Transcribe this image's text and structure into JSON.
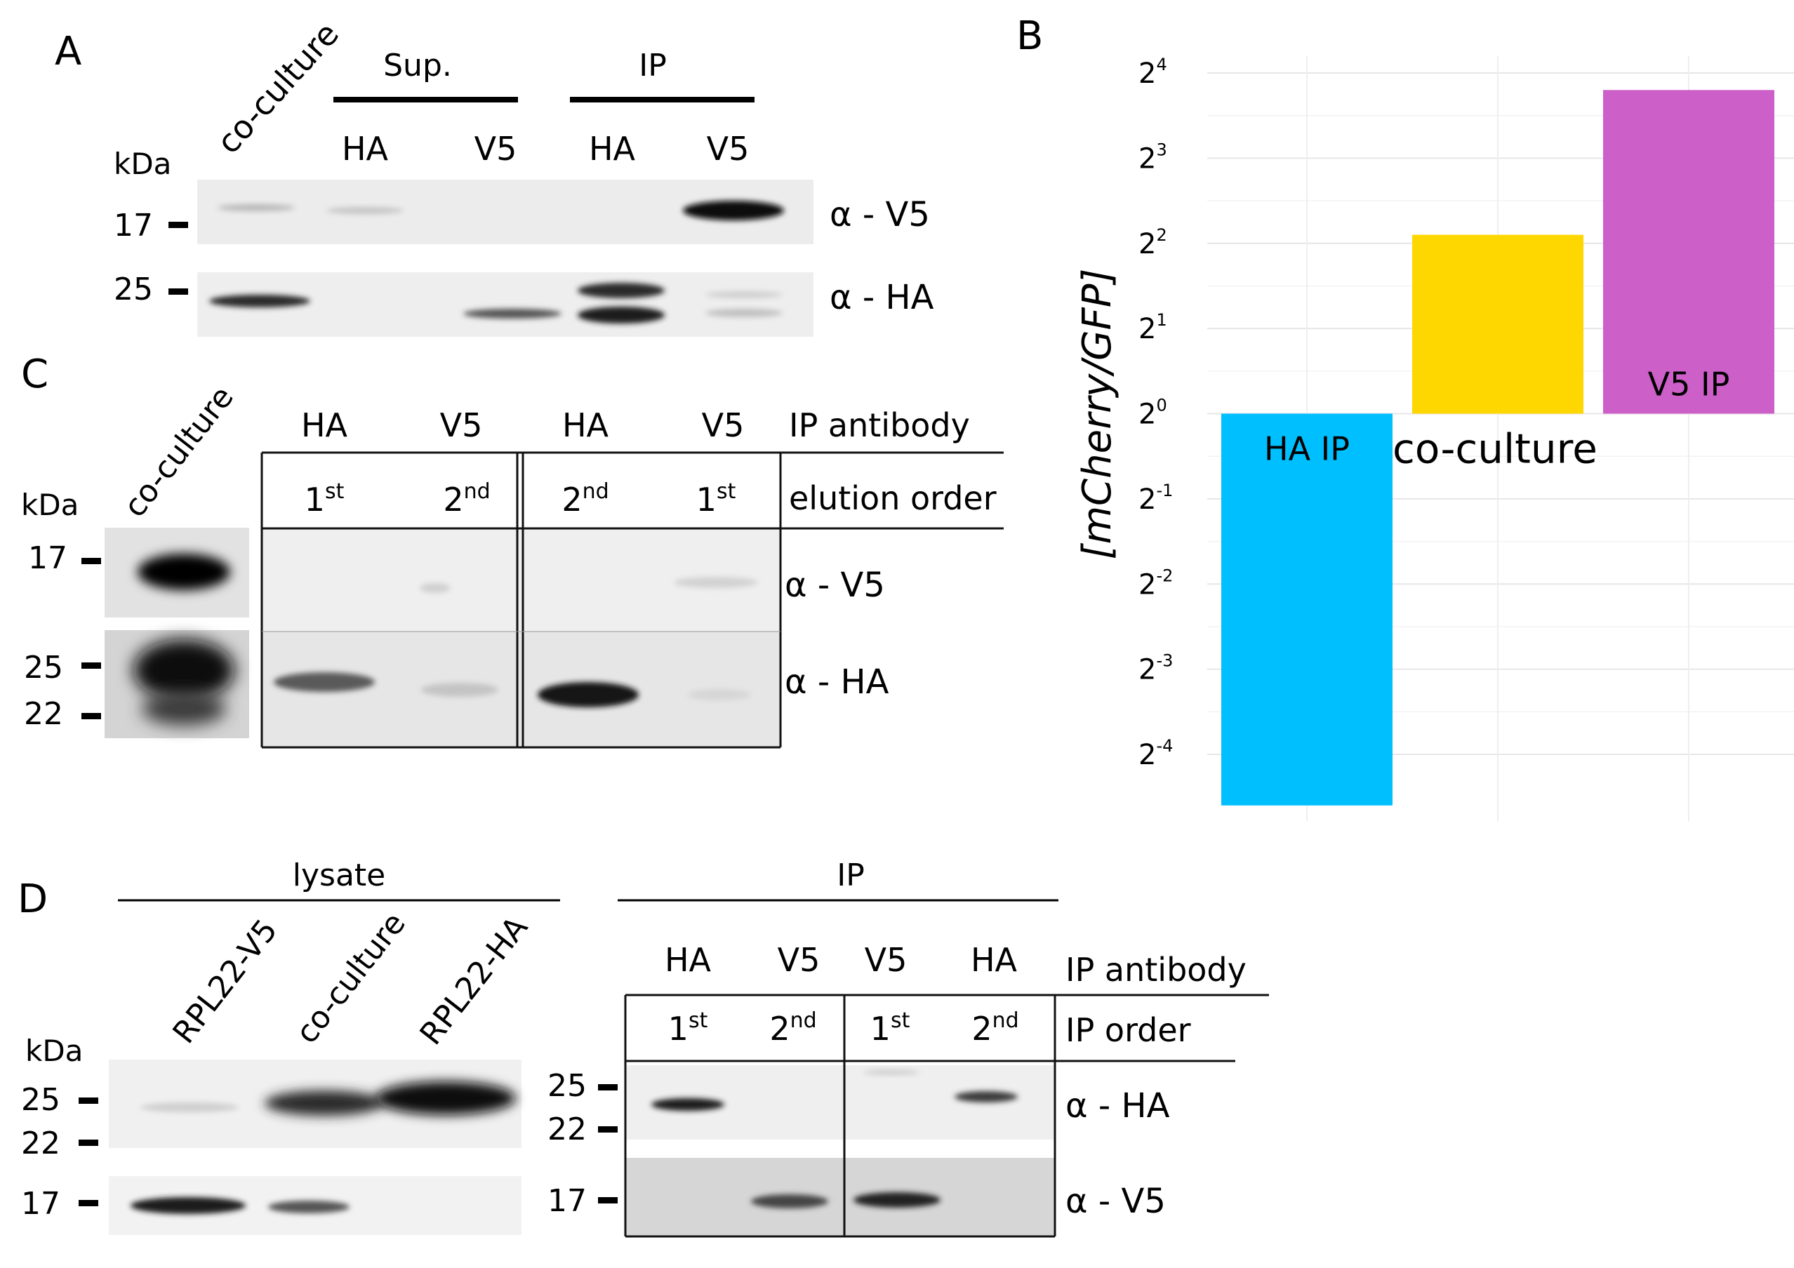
{
  "panels": {
    "A": "A",
    "B": "B",
    "C": "C",
    "D": "D"
  },
  "panel_a": {
    "lane_coculture": "co-culture",
    "group_sup": "Sup.",
    "group_ip": "IP",
    "lanes": [
      "HA",
      "V5",
      "HA",
      "V5"
    ],
    "kda": "kDa",
    "marker_17": "17",
    "marker_25": "25",
    "probe_top": "α  - V5",
    "probe_bottom": "α  - HA"
  },
  "panel_b": {
    "y_title": "[mCherry/GFP]",
    "y_ticks": [
      {
        "base": "2",
        "exp": "4"
      },
      {
        "base": "2",
        "exp": "3"
      },
      {
        "base": "2",
        "exp": "2"
      },
      {
        "base": "2",
        "exp": "1"
      },
      {
        "base": "2",
        "exp": "0"
      },
      {
        "base": "2",
        "exp": "-1"
      },
      {
        "base": "2",
        "exp": "-2"
      },
      {
        "base": "2",
        "exp": "-3"
      },
      {
        "base": "2",
        "exp": "-4"
      }
    ]
  },
  "chart_data": {
    "type": "bar",
    "title": "",
    "xlabel": "",
    "ylabel": "[mCherry/GFP]",
    "y_scale": "log2",
    "ylim_log2": [
      -4.6,
      4.2
    ],
    "categories": [
      "HA IP",
      "co-culture",
      "V5 IP"
    ],
    "values_log2": [
      -4.6,
      2.1,
      3.8
    ],
    "colors": [
      "#00BFFF",
      "#FFD700",
      "#CC5FC8"
    ],
    "grid": true,
    "legend": "none"
  },
  "panel_c": {
    "lane_coculture": "co-culture",
    "kda": "kDa",
    "markers": [
      "17",
      "25",
      "22"
    ],
    "ip_antibody_label": "IP antibody",
    "elution_order_label": "elution order",
    "antibodies": [
      "HA",
      "V5",
      "HA",
      "V5"
    ],
    "orders": [
      {
        "num": "1",
        "sup": "st"
      },
      {
        "num": "2",
        "sup": "nd"
      },
      {
        "num": "2",
        "sup": "nd"
      },
      {
        "num": "1",
        "sup": "st"
      }
    ],
    "probe_top": "α - V5",
    "probe_bottom": "α - HA"
  },
  "panel_d": {
    "lysate_label": "lysate",
    "ip_label": "IP",
    "lanes": [
      "RPL22-V5",
      "co-culture",
      "RPL22-HA"
    ],
    "kda": "kDa",
    "lysate_markers": [
      "25",
      "22",
      "17"
    ],
    "ip_markers": [
      "25",
      "22",
      "17"
    ],
    "ip_antibody_label": "IP antibody",
    "ip_order_label": "IP order",
    "antibodies": [
      "HA",
      "V5",
      "V5",
      "HA"
    ],
    "orders": [
      {
        "num": "1",
        "sup": "st"
      },
      {
        "num": "2",
        "sup": "nd"
      },
      {
        "num": "1",
        "sup": "st"
      },
      {
        "num": "2",
        "sup": "nd"
      }
    ],
    "probe_top": "α - HA",
    "probe_bottom": "α  - V5"
  }
}
